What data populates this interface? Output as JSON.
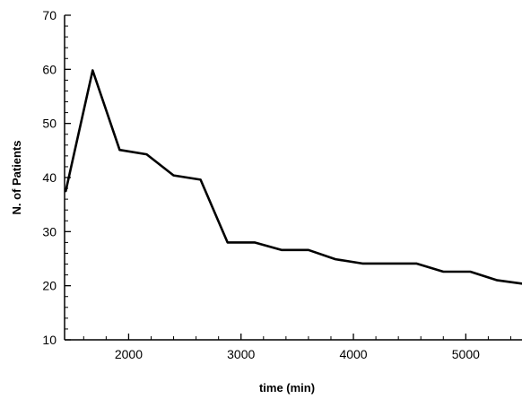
{
  "chart_data": {
    "type": "line",
    "title": "",
    "xlabel": "time (min)",
    "ylabel": "N. of Patients",
    "xlim": [
      1430,
      5500
    ],
    "ylim": [
      10,
      70
    ],
    "x_ticks": [
      {
        "value": 2000,
        "label": "2000"
      },
      {
        "value": 3000,
        "label": "3000"
      },
      {
        "value": 4000,
        "label": "4000"
      },
      {
        "value": 5000,
        "label": "5000"
      }
    ],
    "y_ticks": [
      {
        "value": 10,
        "label": "10"
      },
      {
        "value": 20,
        "label": "20"
      },
      {
        "value": 30,
        "label": "30"
      },
      {
        "value": 40,
        "label": "40"
      },
      {
        "value": 50,
        "label": "50"
      },
      {
        "value": 60,
        "label": "60"
      },
      {
        "value": 70,
        "label": "70"
      }
    ],
    "grid": false,
    "line_color": "#000000",
    "series": [
      {
        "x": [
          1440,
          1680,
          1920,
          2160,
          2400,
          2640,
          2880,
          3120,
          3360,
          3600,
          3840,
          4080,
          4320,
          4560,
          4800,
          5040,
          5280,
          5500
        ],
        "y": [
          37.5,
          59.8,
          45.1,
          44.3,
          40.4,
          39.6,
          28.0,
          28.0,
          26.6,
          26.6,
          24.9,
          24.1,
          24.1,
          24.1,
          22.6,
          22.6,
          21.0,
          20.4
        ]
      }
    ]
  }
}
